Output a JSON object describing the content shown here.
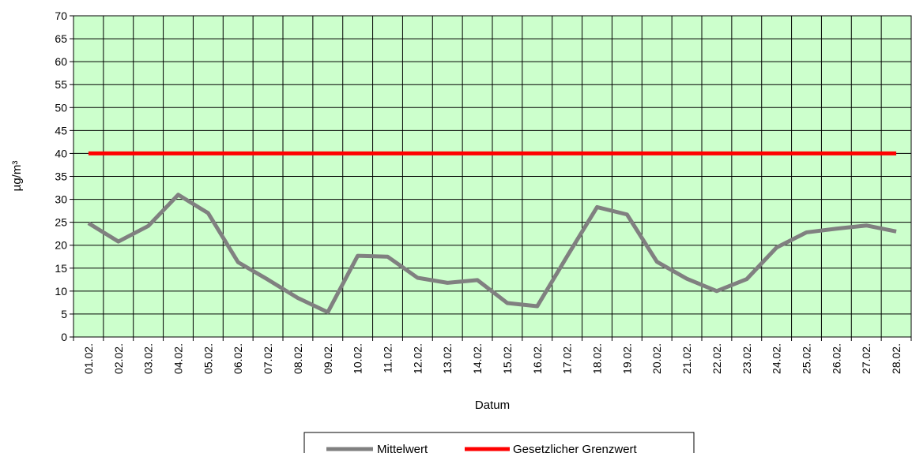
{
  "chart_data": {
    "type": "line",
    "title": "",
    "xlabel": "Datum",
    "ylabel": "µg/m³",
    "ylim": [
      0,
      70
    ],
    "ytick_step": 5,
    "grid": true,
    "legend_position": "bottom",
    "plot_background": "#ccffcc",
    "categories": [
      "01.02.",
      "02.02.",
      "03.02.",
      "04.02.",
      "05.02.",
      "06.02.",
      "07.02.",
      "08.02.",
      "09.02.",
      "10.02.",
      "11.02.",
      "12.02.",
      "13.02.",
      "14.02.",
      "15.02.",
      "16.02.",
      "17.02.",
      "18.02.",
      "19.02.",
      "20.02.",
      "21.02.",
      "22.02.",
      "23.02.",
      "24.02.",
      "25.02.",
      "26.02.",
      "27.02.",
      "28.02."
    ],
    "series": [
      {
        "name": "Mittelwert",
        "color": "#808080",
        "values": [
          24.8,
          20.8,
          24.2,
          31.0,
          27.0,
          16.3,
          12.5,
          8.5,
          5.4,
          17.7,
          17.5,
          12.9,
          11.8,
          12.4,
          7.4,
          6.7,
          17.6,
          28.3,
          26.7,
          16.4,
          12.7,
          10.0,
          12.6,
          19.5,
          22.8,
          23.6,
          24.3,
          23.0
        ]
      },
      {
        "name": "Gesetzlicher  Grenzwert",
        "color": "#ff0000",
        "values": [
          40,
          40,
          40,
          40,
          40,
          40,
          40,
          40,
          40,
          40,
          40,
          40,
          40,
          40,
          40,
          40,
          40,
          40,
          40,
          40,
          40,
          40,
          40,
          40,
          40,
          40,
          40,
          40
        ]
      }
    ]
  }
}
